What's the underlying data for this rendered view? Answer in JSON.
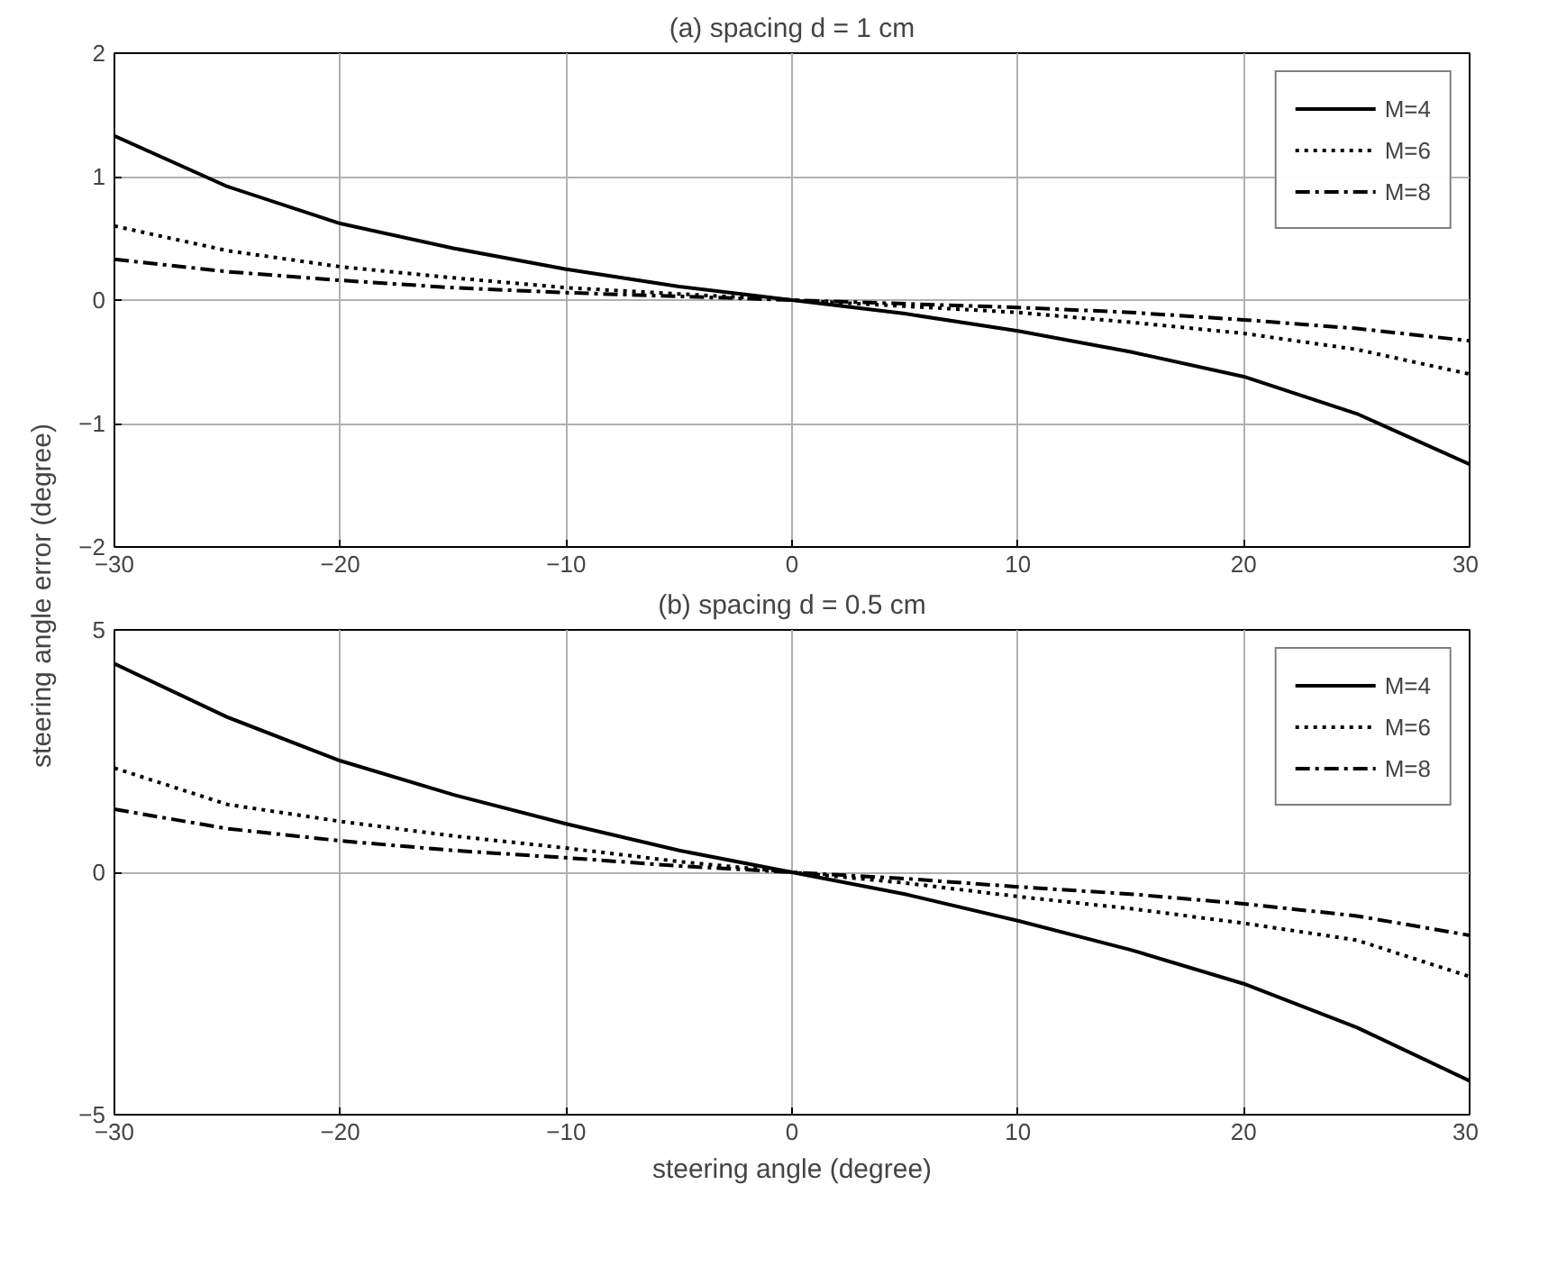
{
  "chart_data": [
    {
      "type": "line",
      "title": "(a) spacing d = 1 cm",
      "ylabel": "steering angle error (degree)",
      "x": [
        -30,
        -25,
        -20,
        -15,
        -10,
        -5,
        0,
        5,
        10,
        15,
        20,
        25,
        30
      ],
      "xlim": [
        -30,
        30
      ],
      "xticks": [
        -30,
        -20,
        -10,
        0,
        10,
        20,
        30
      ],
      "ylim": [
        -2,
        2
      ],
      "yticks": [
        -2,
        -1,
        0,
        1,
        2
      ],
      "grid": true,
      "legend": "top right",
      "series": [
        {
          "name": "M=4",
          "color": "#000000",
          "line_style": "solid",
          "values": [
            1.33,
            0.92,
            0.62,
            0.42,
            0.25,
            0.11,
            0,
            -0.11,
            -0.25,
            -0.42,
            -0.62,
            -0.92,
            -1.33
          ]
        },
        {
          "name": "M=6",
          "color": "#000000",
          "line_style": "dotted",
          "values": [
            0.6,
            0.4,
            0.27,
            0.18,
            0.1,
            0.05,
            0,
            -0.05,
            -0.1,
            -0.18,
            -0.27,
            -0.4,
            -0.6
          ]
        },
        {
          "name": "M=8",
          "color": "#000000",
          "line_style": "dashdot",
          "values": [
            0.33,
            0.23,
            0.16,
            0.1,
            0.06,
            0.03,
            0,
            -0.03,
            -0.06,
            -0.1,
            -0.16,
            -0.23,
            -0.33
          ]
        }
      ]
    },
    {
      "type": "line",
      "title": "(b) spacing d = 0.5 cm",
      "xlabel": "steering angle (degree)",
      "x": [
        -30,
        -25,
        -20,
        -15,
        -10,
        -5,
        0,
        5,
        10,
        15,
        20,
        25,
        30
      ],
      "xlim": [
        -30,
        30
      ],
      "xticks": [
        -30,
        -20,
        -10,
        0,
        10,
        20,
        30
      ],
      "ylim": [
        -5,
        5
      ],
      "yticks": [
        -5,
        0,
        5
      ],
      "grid": true,
      "legend": "top right",
      "series": [
        {
          "name": "M=4",
          "color": "#000000",
          "line_style": "solid",
          "values": [
            4.3,
            3.2,
            2.3,
            1.6,
            1.0,
            0.45,
            0,
            -0.45,
            -1.0,
            -1.6,
            -2.3,
            -3.2,
            -4.3
          ]
        },
        {
          "name": "M=6",
          "color": "#000000",
          "line_style": "dotted",
          "values": [
            2.15,
            1.4,
            1.05,
            0.75,
            0.5,
            0.22,
            0,
            -0.22,
            -0.5,
            -0.75,
            -1.05,
            -1.4,
            -2.15
          ]
        },
        {
          "name": "M=8",
          "color": "#000000",
          "line_style": "dashdot",
          "values": [
            1.3,
            0.9,
            0.65,
            0.45,
            0.3,
            0.13,
            0,
            -0.13,
            -0.3,
            -0.45,
            -0.65,
            -0.9,
            -1.3
          ]
        }
      ]
    }
  ]
}
